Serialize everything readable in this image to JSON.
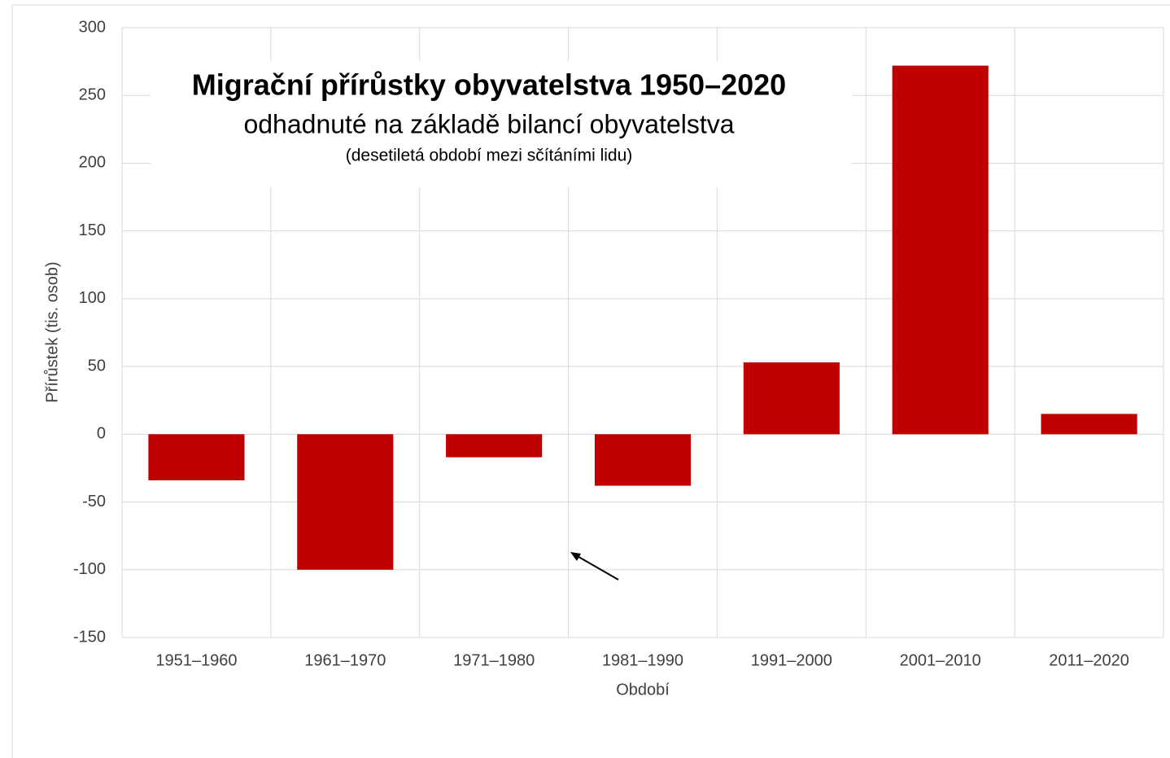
{
  "chart_data": {
    "type": "bar",
    "title": "Migrační přírůstky obyvatelstva 1950–2020",
    "subtitle": "odhadnuté na základě bilancí obyvatelstva",
    "note": "(desetiletá období mezi sčítáními lidu)",
    "x_label": "Období",
    "y_label": "Přírůstek (tis. osob)",
    "categories": [
      "1951–1960",
      "1961–1970",
      "1971–1980",
      "1981–1990",
      "1991–2000",
      "2001–2010",
      "2011–2020"
    ],
    "values": [
      -34,
      -100,
      -17,
      -38,
      53,
      272,
      15
    ],
    "color": "#c00000",
    "ylim": [
      -150,
      300
    ],
    "yticks": [
      -150,
      -100,
      -50,
      0,
      50,
      100,
      150,
      200,
      250,
      300
    ],
    "grid": true
  }
}
